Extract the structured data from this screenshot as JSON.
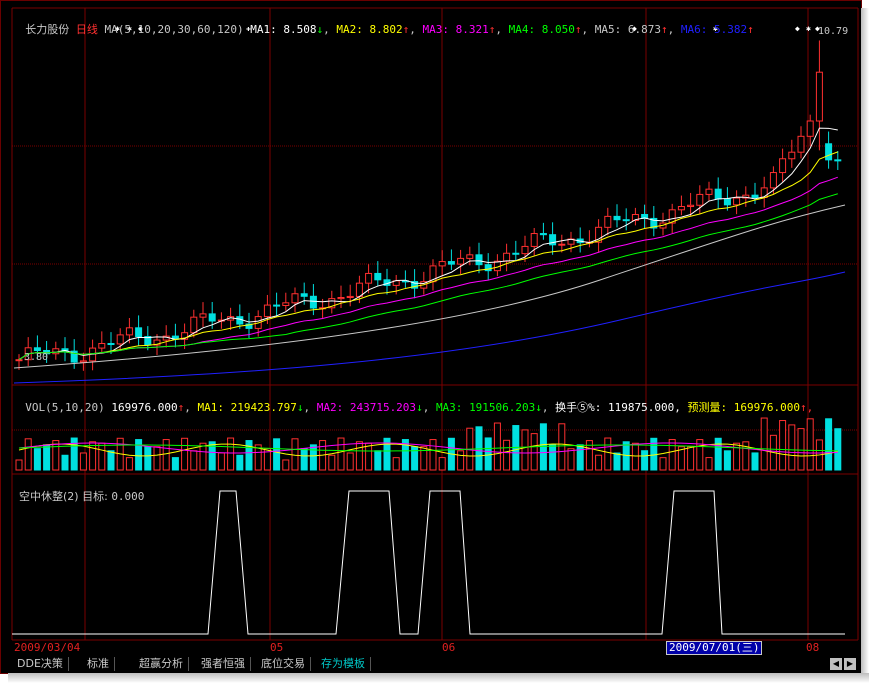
{
  "price_header": {
    "stock_name": "长力股份",
    "period": "日线",
    "ma_label": "MA(5,10,20,30,60,120)",
    "ma": [
      {
        "label": "MA1:",
        "value": "8.508",
        "trend": "↓",
        "color": "#ffffff"
      },
      {
        "label": "MA2:",
        "value": "8.802",
        "trend": "↑",
        "color": "#ffff00"
      },
      {
        "label": "MA3:",
        "value": "8.321",
        "trend": "↑",
        "color": "#ff00ff"
      },
      {
        "label": "MA4:",
        "value": "8.050",
        "trend": "↑",
        "color": "#00ff00"
      },
      {
        "label": "MA5:",
        "value": "6.873",
        "trend": "↑",
        "color": "#c8c8c8"
      },
      {
        "label": "MA6:",
        "value": "5.382",
        "trend": "↑",
        "color": "#2020ff"
      }
    ]
  },
  "price_chart": {
    "high_label": "10.79",
    "low_label": "3.80"
  },
  "volume_header": {
    "label": "VOL(5,10,20)",
    "vol_value": "169976.000",
    "vol_trend": "↑",
    "ma1_label": "MA1:",
    "ma1_value": "219423.797",
    "ma1_trend": "↓",
    "ma2_label": "MA2:",
    "ma2_value": "243715.203",
    "ma2_trend": "↓",
    "ma3_label": "MA3:",
    "ma3_value": "191506.203",
    "ma3_trend": "↓",
    "turnover_label": "换手⑤%",
    "turnover_value": ": 119875.000,",
    "forecast_label": "预测量:",
    "forecast_value": "169976.000",
    "forecast_trend": "↑,"
  },
  "indicator_header": {
    "label": "空中休整(2)",
    "target_label": "目标:",
    "target_value": "0.000"
  },
  "date_axis": {
    "start": "2009/03/04",
    "m5": "05",
    "m6": "06",
    "m8": "08",
    "cursor": "2009/07/01(三)"
  },
  "tabs": [
    {
      "label": "DDE决策"
    },
    {
      "label": "标准"
    },
    {
      "label": "超赢分析"
    },
    {
      "label": "强者恒强"
    },
    {
      "label": "底位交易"
    },
    {
      "label": "存为模板"
    }
  ],
  "colors": {
    "up": "#ff3030",
    "down": "#00e0e0",
    "grid": "#7a0000",
    "ma1": "#ffffff",
    "ma2": "#ffff00",
    "ma3": "#ff00ff",
    "ma4": "#00ff00",
    "ma5": "#c8c8c8",
    "ma6": "#2020ff"
  }
}
